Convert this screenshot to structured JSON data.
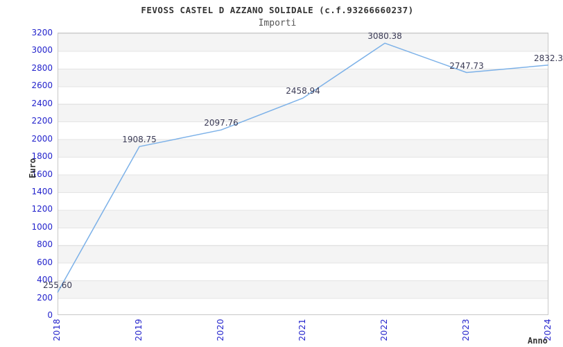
{
  "header": {
    "title": "FEVOSS CASTEL D AZZANO SOLIDALE (c.f.93266660237)",
    "subtitle": "Importi"
  },
  "chart_data": {
    "type": "line",
    "title": "FEVOSS CASTEL D AZZANO SOLIDALE (c.f.93266660237)",
    "subtitle": "Importi",
    "xlabel": "Anno",
    "ylabel": "Euro",
    "categories": [
      "2018",
      "2019",
      "2020",
      "2021",
      "2022",
      "2023",
      "2024"
    ],
    "series": [
      {
        "name": "Importi",
        "values": [
          255.6,
          1908.75,
          2097.76,
          2458.94,
          3080.38,
          2747.73,
          2832.3
        ]
      }
    ],
    "point_labels": [
      "255.60",
      "1908.75",
      "2097.76",
      "2458.94",
      "3080.38",
      "2747.73",
      "2832.3"
    ],
    "ylim": [
      0,
      3200
    ],
    "ytick_step": 200,
    "yticks": [
      0,
      200,
      400,
      600,
      800,
      1000,
      1200,
      1400,
      1600,
      1800,
      2000,
      2200,
      2400,
      2600,
      2800,
      3000,
      3200
    ],
    "grid": "horizontal alternating gray bands every 200",
    "legend": "none",
    "colors": {
      "line": "#7cb1e8",
      "tick_label": "#2323cc",
      "point_label": "#3a3a55",
      "title": "#333333",
      "subtitle": "#555555",
      "band": "#f4f4f4",
      "plot_border": "#c8c8c8"
    }
  }
}
